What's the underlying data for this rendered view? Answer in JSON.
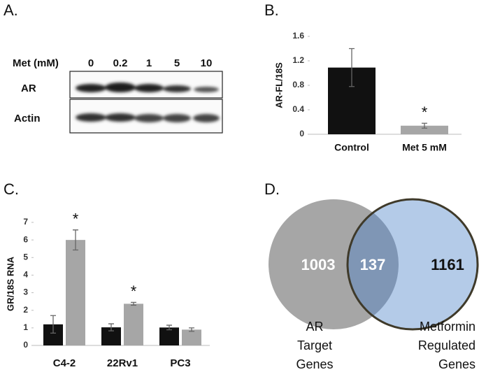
{
  "panel_labels": [
    "A.",
    "B.",
    "C.",
    "D."
  ],
  "blot": {
    "header": "Met (mM)",
    "lanes": [
      "0",
      "0.2",
      "1",
      "5",
      "10"
    ],
    "rows": [
      "AR",
      "Actin"
    ]
  },
  "chart_data": [
    {
      "type": "bar",
      "y_label": "AR-FL/18S",
      "categories": [
        "Control",
        "Met 5 mM"
      ],
      "series": [
        {
          "color": "#111111",
          "values": [
            1.09,
            0.14
          ],
          "errors": [
            0.31,
            0.04
          ],
          "point_colors": [
            "#111111",
            "#a6a6a6"
          ]
        }
      ],
      "ylim": [
        0,
        1.6
      ],
      "yticks": [
        0,
        0.4,
        0.8,
        1.2,
        1.6
      ],
      "annotations": [
        {
          "text": "*",
          "category": "Met 5 mM"
        }
      ]
    },
    {
      "type": "bar",
      "y_label": "GR/18S RNA",
      "categories": [
        "C4-2",
        "22Rv1",
        "PC3"
      ],
      "series": [
        {
          "color": "#111111",
          "values": [
            1.2,
            1.03,
            1.02
          ],
          "errors": [
            0.5,
            0.2,
            0.13
          ]
        },
        {
          "color": "#a6a6a6",
          "values": [
            6.0,
            2.37,
            0.9
          ],
          "errors": [
            0.57,
            0.08,
            0.1
          ]
        }
      ],
      "ylim": [
        0,
        7
      ],
      "yticks": [
        0,
        1,
        2,
        3,
        4,
        5,
        6,
        7
      ],
      "annotations": [
        {
          "text": "*",
          "category": "C4-2"
        },
        {
          "text": "*",
          "category": "22Rv1"
        }
      ]
    }
  ],
  "venn": {
    "left": {
      "label": [
        "AR",
        "Target",
        "Genes"
      ],
      "count": 1003
    },
    "right": {
      "label": [
        "Metformin",
        "Regulated",
        "Genes"
      ],
      "count": 1161
    },
    "both": 137
  }
}
